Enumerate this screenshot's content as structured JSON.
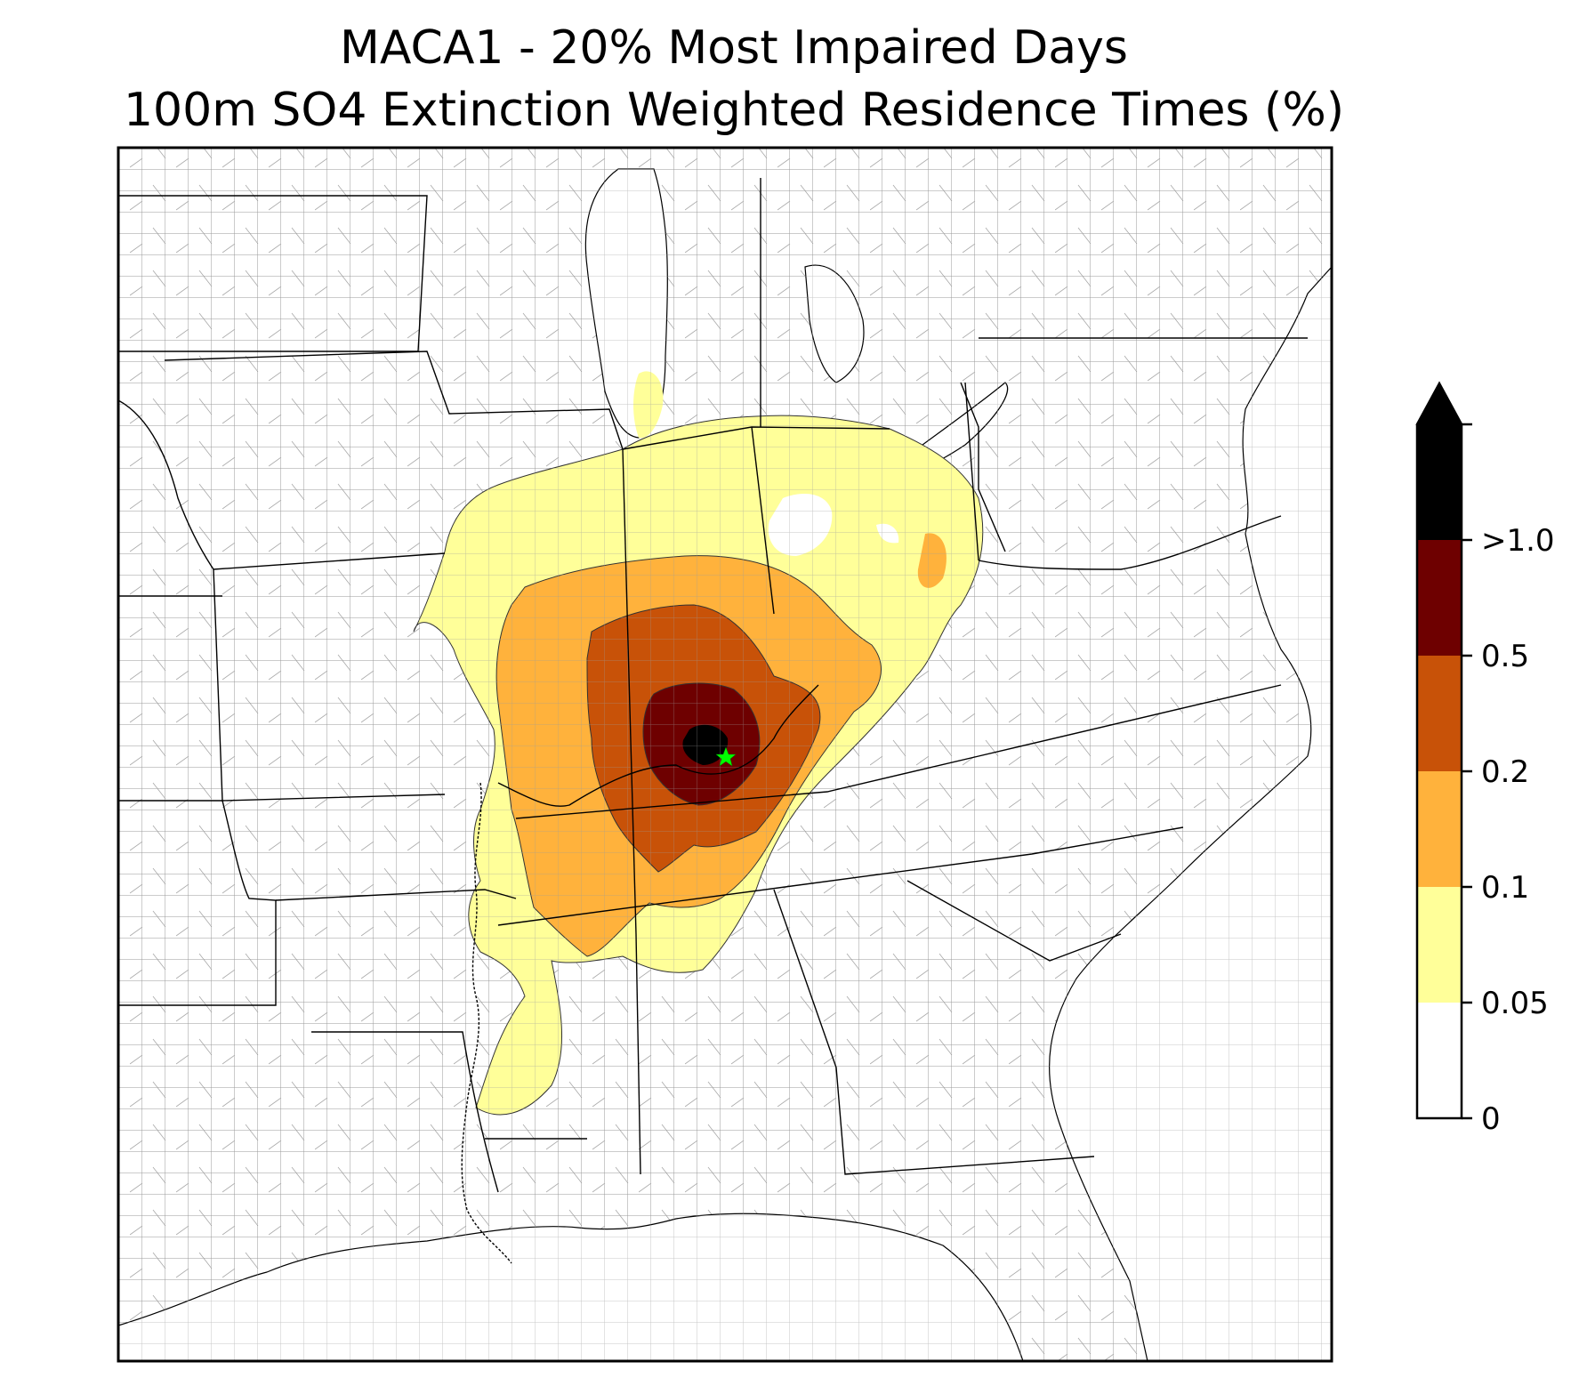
{
  "title": {
    "line1": "MACA1 - 20% Most Impaired Days",
    "line2": "100m SO4 Extinction Weighted Residence Times (%)"
  },
  "map": {
    "region": "Eastern United States, county boundaries",
    "receptor_marker": {
      "shape": "star",
      "color": "#00ff00"
    }
  },
  "legend": {
    "ticks": [
      {
        "label": "0",
        "value": 0
      },
      {
        "label": "0.05",
        "value": 0.05
      },
      {
        "label": "0.1",
        "value": 0.1
      },
      {
        "label": "0.2",
        "value": 0.2
      },
      {
        "label": "0.5",
        "value": 0.5
      },
      {
        "label": ">1.0",
        "value": 1.0
      }
    ],
    "bins": [
      {
        "from": 0,
        "to": 0.05,
        "color": "#ffffff"
      },
      {
        "from": 0.05,
        "to": 0.1,
        "color": "#ffff99"
      },
      {
        "from": 0.1,
        "to": 0.2,
        "color": "#ffb23c"
      },
      {
        "from": 0.2,
        "to": 0.5,
        "color": "#c85208"
      },
      {
        "from": 0.5,
        "to": 1.0,
        "color": "#6e0000"
      },
      {
        "from": 1.0,
        "to": null,
        "color": "#000000"
      }
    ],
    "extend": "max"
  }
}
